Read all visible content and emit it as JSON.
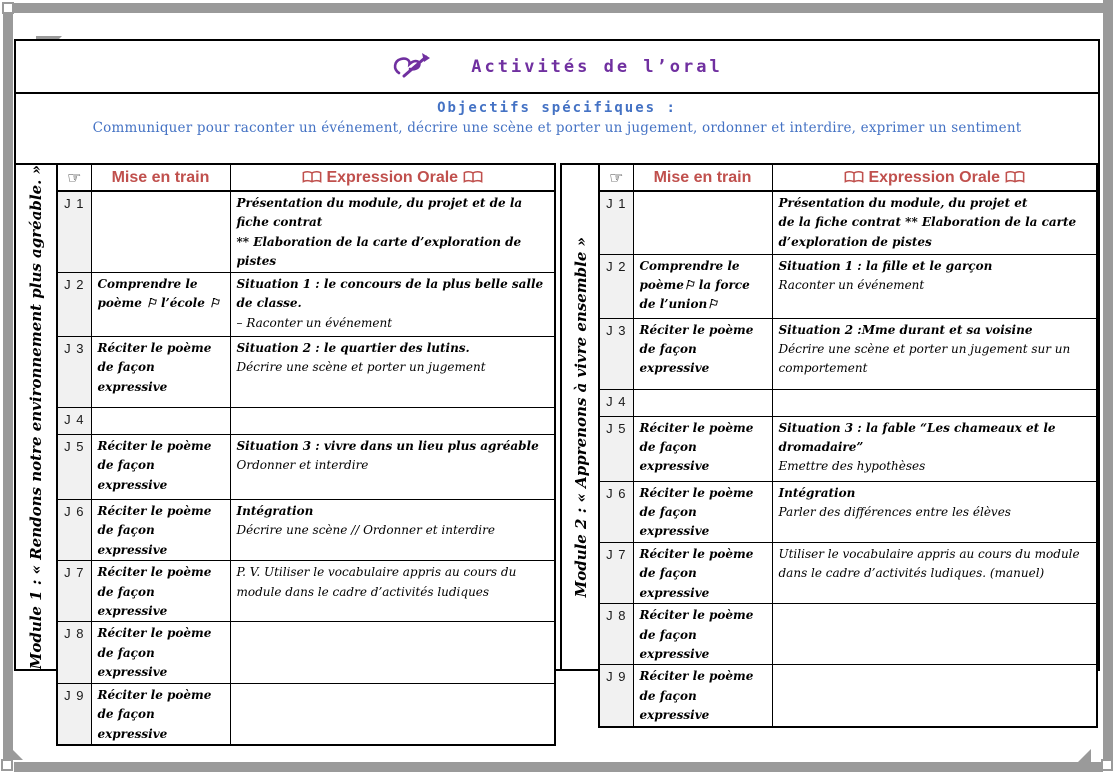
{
  "header": {
    "title": "Activités de l’oral",
    "title_icon": "pen-writing-icon"
  },
  "objectives": {
    "label": "Objectifs spécifiques :",
    "text": "Communiquer pour raconter un événement, décrire une scène et porter un jugement, ordonner et interdire, exprimer un sentiment"
  },
  "table_header": {
    "pointer": "☞",
    "mise": "Mise en train",
    "expr": "Expression Orale",
    "expr_icon": "open-book-icon"
  },
  "modules": [
    {
      "label": "Module 1 : « Rendons notre environnement plus agréable. »",
      "rows": [
        {
          "day": "J 1",
          "mise": "",
          "expr": [
            {
              "t": "Présentation du module, du projet et de la fiche contrat",
              "s": "b"
            },
            {
              "t": "** Elaboration de la carte d’exploration de pistes",
              "s": "b"
            }
          ]
        },
        {
          "day": "J 2",
          "mise": "Comprendre le poème ⚐ l’école ⚐",
          "expr": [
            {
              "t": "Situation 1 : le concours de la plus belle salle de classe.",
              "s": "b"
            },
            {
              "t": "– Raconter un événement",
              "s": "n"
            }
          ]
        },
        {
          "day": "J 3",
          "mise": "Réciter le poème de façon expressive",
          "expr": [
            {
              "t": "Situation 2 : le quartier des lutins.",
              "s": "b"
            },
            {
              "t": "Décrire une scène et porter un jugement",
              "s": "n"
            }
          ]
        },
        {
          "day": "J 4",
          "mise": "",
          "expr": []
        },
        {
          "day": "J 5",
          "mise": "Réciter le poème de façon expressive",
          "expr": [
            {
              "t": "Situation 3 : vivre dans un lieu plus agréable",
              "s": "b"
            },
            {
              "t": "Ordonner et interdire",
              "s": "n"
            }
          ]
        },
        {
          "day": "J 6",
          "mise": "Réciter le poème de façon expressive",
          "expr": [
            {
              "t": "Intégration",
              "s": "b"
            },
            {
              "t": "Décrire une scène  // Ordonner et interdire",
              "s": "n"
            }
          ]
        },
        {
          "day": "J 7",
          "mise": "Réciter le poème de façon expressive",
          "expr": [
            {
              "t": "P. V. Utiliser le vocabulaire appris au cours du module dans le cadre d’activités ludiques",
              "s": "n"
            }
          ]
        },
        {
          "day": "J 8",
          "mise": "Réciter le poème de façon expressive",
          "expr": []
        },
        {
          "day": "J 9",
          "mise": "Réciter le poème de façon expressive",
          "expr": []
        }
      ]
    },
    {
      "label": "Module 2 : « Apprenons à vivre ensemble »",
      "rows": [
        {
          "day": "J 1",
          "mise": "",
          "expr": [
            {
              "t": "Présentation du module, du projet et",
              "s": "b"
            },
            {
              "t": "de la fiche contrat ** Elaboration de la carte",
              "s": "b"
            },
            {
              "t": "d’exploration de pistes",
              "s": "b"
            }
          ]
        },
        {
          "day": "J 2",
          "mise": "Comprendre le poème⚐ la force de l’union⚐",
          "expr": [
            {
              "t": "Situation 1 : la fille et le garçon",
              "s": "b"
            },
            {
              "t": "Raconter un événement",
              "s": "n"
            }
          ]
        },
        {
          "day": "J 3",
          "mise": "Réciter le poème de façon expressive",
          "expr": [
            {
              "t": "Situation 2 :Mme durant et sa voisine",
              "s": "b"
            },
            {
              "t": "Décrire une scène et porter un jugement sur un comportement",
              "s": "n"
            }
          ]
        },
        {
          "day": "J 4",
          "mise": "",
          "expr": []
        },
        {
          "day": "J 5",
          "mise": "Réciter le poème de façon expressive",
          "expr": [
            {
              "t": "Situation 3 : la fable “Les chameaux et le dromadaire”",
              "s": "b"
            },
            {
              "t": "Emettre des hypothèses",
              "s": "n"
            }
          ]
        },
        {
          "day": "J 6",
          "mise": "Réciter le poème de façon expressive",
          "expr": [
            {
              "t": "Intégration",
              "s": "b"
            },
            {
              "t": "Parler des différences entre les élèves",
              "s": "n"
            }
          ]
        },
        {
          "day": "J 7",
          "mise": "Réciter le poème de façon expressive",
          "expr": [
            {
              "t": "Utiliser le vocabulaire appris au cours du module dans le cadre d’activités ludiques. (manuel)",
              "s": "n"
            }
          ]
        },
        {
          "day": "J 8",
          "mise": "Réciter le poème de façon expressive",
          "expr": []
        },
        {
          "day": "J 9",
          "mise": "Réciter le poème de façon expressive",
          "expr": []
        }
      ]
    }
  ],
  "colors": {
    "title_purple": "#7030A0",
    "objectives_blue": "#4472C4",
    "header_red": "#C0504D",
    "frame_gray": "#9A9A9A",
    "day_column_bg": "#F1F1F1",
    "border_black": "#000000"
  }
}
